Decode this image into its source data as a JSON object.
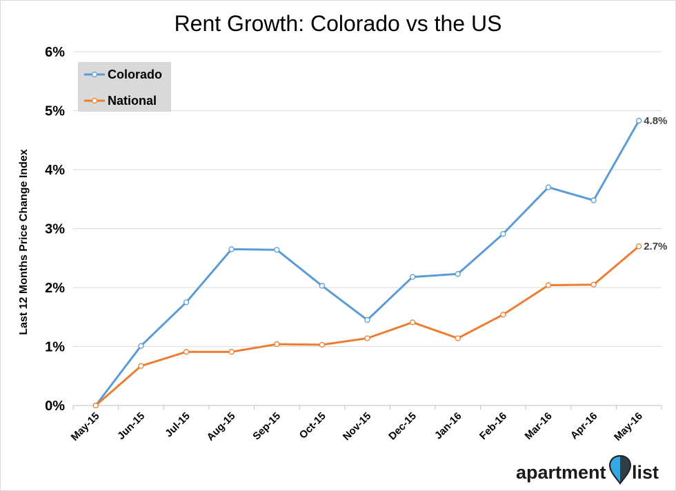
{
  "chart_data": {
    "type": "line",
    "title": "Rent Growth: Colorado vs the US",
    "ylabel": "Last 12 Months Price Change Index",
    "xlabel": "",
    "categories": [
      "May-15",
      "Jun-15",
      "Jul-15",
      "Aug-15",
      "Sep-15",
      "Oct-15",
      "Nov-15",
      "Dec-15",
      "Jan-16",
      "Feb-16",
      "Mar-16",
      "Apr-16",
      "May-16"
    ],
    "ylim": [
      0,
      6
    ],
    "yticks": [
      0,
      1,
      2,
      3,
      4,
      5,
      6
    ],
    "ytick_labels": [
      "0%",
      "1%",
      "2%",
      "3%",
      "4%",
      "5%",
      "6%"
    ],
    "y_unit": "%",
    "grid": true,
    "legend": "top-left",
    "series": [
      {
        "name": "Colorado",
        "color": "#5b9bd5",
        "values": [
          0.0,
          1.01,
          1.75,
          2.65,
          2.64,
          2.03,
          1.45,
          2.18,
          2.23,
          2.91,
          3.7,
          3.48,
          4.83
        ],
        "end_label": "4.8%"
      },
      {
        "name": "National",
        "color": "#ed7d31",
        "values": [
          0.0,
          0.67,
          0.91,
          0.91,
          1.04,
          1.03,
          1.14,
          1.41,
          1.14,
          1.54,
          2.04,
          2.05,
          2.7
        ],
        "end_label": "2.7%"
      }
    ]
  },
  "branding": {
    "logo_text_left": "apartment",
    "logo_text_right": "list",
    "pin_color": "#36a7e0"
  }
}
